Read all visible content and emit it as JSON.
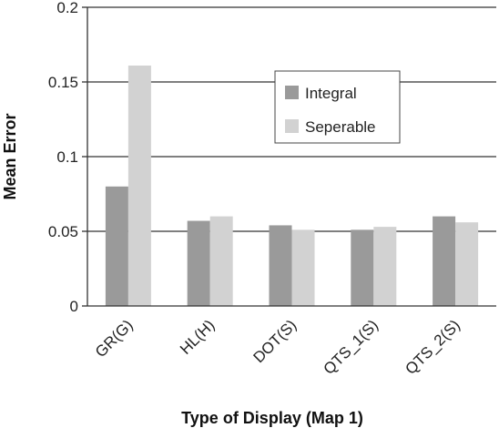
{
  "chart_data": {
    "type": "bar",
    "title": "",
    "xlabel": "Type of Display (Map 1)",
    "ylabel": "Mean Error",
    "ylim": [
      0,
      0.2
    ],
    "yticks": [
      "0",
      "0.05",
      "0.1",
      "0.15",
      "0.2"
    ],
    "ytick_values": [
      0,
      0.05,
      0.1,
      0.15,
      0.2
    ],
    "grid": true,
    "legend_position": "top-right",
    "categories": [
      "GR(G)",
      "HL(H)",
      "DOT(S)",
      "QTS_1(S)",
      "QTS_2(S)"
    ],
    "series": [
      {
        "name": "Integral",
        "color": "#9a9a9a",
        "values": [
          0.08,
          0.057,
          0.054,
          0.051,
          0.06
        ]
      },
      {
        "name": "Seperable",
        "color": "#d2d2d2",
        "values": [
          0.161,
          0.06,
          0.051,
          0.053,
          0.056
        ]
      }
    ]
  }
}
